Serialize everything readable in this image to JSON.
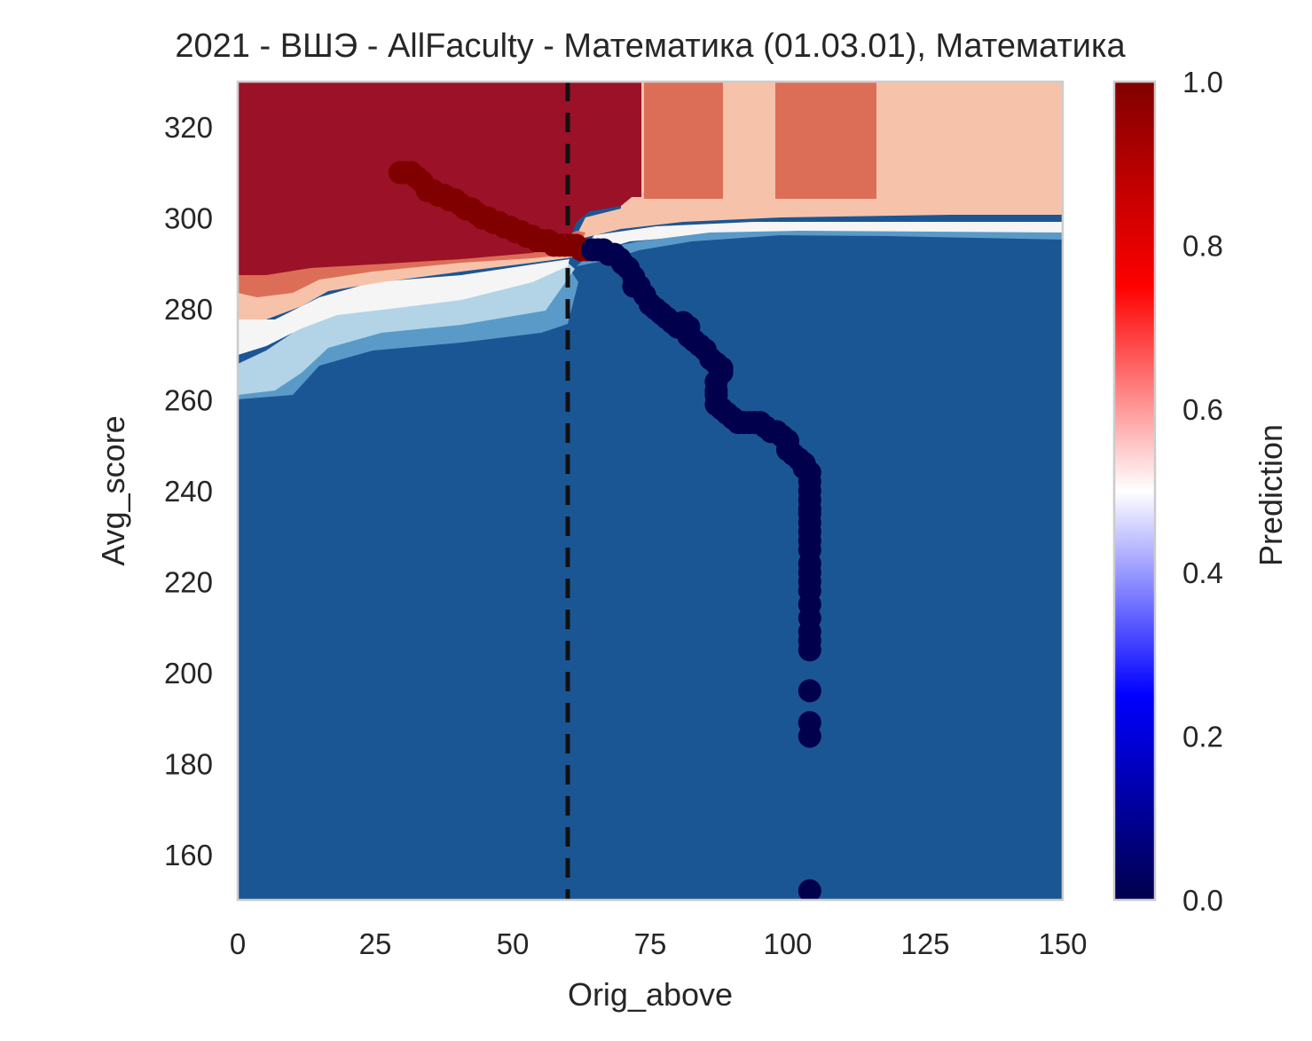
{
  "chart_data": {
    "type": "heatmap",
    "title": "2021 - ВШЭ - AllFaculty - Математика (01.03.01), Математика",
    "xlabel": "Orig_above",
    "ylabel": "Avg_score",
    "xlim": [
      0,
      150
    ],
    "ylim": [
      150,
      330
    ],
    "x_ticks": [
      0,
      25,
      50,
      75,
      100,
      125,
      150
    ],
    "y_ticks": [
      160,
      180,
      200,
      220,
      240,
      260,
      280,
      300,
      320
    ],
    "grid": false,
    "colorbar": {
      "label": "Prediction",
      "range": [
        0,
        1
      ],
      "ticks": [
        "0.0",
        "0.2",
        "0.4",
        "0.6",
        "0.8",
        "1.0"
      ],
      "colormap": [
        "#00004c",
        "#0000ff",
        "#ffffff",
        "#ff0000",
        "#800000"
      ]
    },
    "contour_levels": [
      {
        "range": "0.9-1.0",
        "color": "#9b1127"
      },
      {
        "range": "0.7-0.8",
        "color": "#dc6e57"
      },
      {
        "range": "0.6-0.7",
        "color": "#f6c3aa"
      },
      {
        "range": "0.4-0.6",
        "color": "#f5f5f5"
      },
      {
        "range": "0.3-0.4",
        "color": "#b2d4e6"
      },
      {
        "range": "0.2-0.3",
        "color": "#5a9ac8"
      },
      {
        "range": "0.0-0.1",
        "color": "#1b5694"
      }
    ],
    "vertical_line": {
      "x": 60,
      "style": "dashed",
      "color": "#111111"
    },
    "high_points": [
      [
        29.5,
        310
      ],
      [
        30.5,
        310
      ],
      [
        31.5,
        310
      ],
      [
        32.5,
        309
      ],
      [
        33.5,
        308
      ],
      [
        34.5,
        306
      ],
      [
        35.5,
        306
      ],
      [
        36.5,
        305
      ],
      [
        37.5,
        305
      ],
      [
        38.5,
        304
      ],
      [
        39.5,
        304
      ],
      [
        40.5,
        303
      ],
      [
        41.5,
        302
      ],
      [
        42.5,
        302
      ],
      [
        43.5,
        301
      ],
      [
        44.5,
        300
      ],
      [
        45.5,
        300
      ],
      [
        46.5,
        299
      ],
      [
        47.5,
        299
      ],
      [
        48.5,
        298
      ],
      [
        49.5,
        298
      ],
      [
        50.5,
        297
      ],
      [
        51.5,
        297
      ],
      [
        52.5,
        296
      ],
      [
        53.5,
        296
      ],
      [
        54.5,
        295
      ],
      [
        55.5,
        295
      ],
      [
        56.5,
        295
      ],
      [
        57.5,
        294
      ],
      [
        58.5,
        294
      ],
      [
        59.5,
        294
      ],
      [
        60.5,
        294
      ],
      [
        61.5,
        294
      ],
      [
        62.5,
        293
      ],
      [
        63.5,
        293
      ]
    ],
    "low_points": [
      [
        64.5,
        293
      ],
      [
        65.5,
        293
      ],
      [
        66.5,
        293
      ],
      [
        67.5,
        292
      ],
      [
        68.5,
        292
      ],
      [
        69.5,
        291
      ],
      [
        70,
        290
      ],
      [
        71,
        289
      ],
      [
        72,
        287
      ],
      [
        72,
        285
      ],
      [
        73,
        285
      ],
      [
        74,
        283
      ],
      [
        75,
        281
      ],
      [
        76,
        280
      ],
      [
        77,
        279
      ],
      [
        78,
        278
      ],
      [
        79,
        277
      ],
      [
        80,
        276
      ],
      [
        81,
        277
      ],
      [
        82,
        276
      ],
      [
        82,
        274
      ],
      [
        83,
        273
      ],
      [
        84,
        272
      ],
      [
        85,
        271
      ],
      [
        86,
        269
      ],
      [
        87,
        268
      ],
      [
        88,
        267
      ],
      [
        88,
        266
      ],
      [
        87,
        264
      ],
      [
        87,
        262
      ],
      [
        87,
        261
      ],
      [
        87,
        259
      ],
      [
        88,
        258
      ],
      [
        89,
        257
      ],
      [
        90,
        256
      ],
      [
        91,
        255
      ],
      [
        92,
        255
      ],
      [
        93,
        255
      ],
      [
        94,
        255
      ],
      [
        95,
        255
      ],
      [
        96,
        254
      ],
      [
        97,
        253
      ],
      [
        98,
        253
      ],
      [
        99,
        252
      ],
      [
        100,
        251
      ],
      [
        100,
        249
      ],
      [
        101,
        248
      ],
      [
        102,
        247
      ],
      [
        103,
        246
      ],
      [
        103,
        245
      ],
      [
        104,
        244
      ],
      [
        104,
        242
      ],
      [
        104,
        240
      ],
      [
        104,
        238
      ],
      [
        104,
        236
      ],
      [
        104,
        235
      ],
      [
        104,
        233
      ],
      [
        104,
        231
      ],
      [
        104,
        229
      ],
      [
        104,
        227
      ],
      [
        104,
        224
      ],
      [
        104,
        222
      ],
      [
        104,
        220
      ],
      [
        104,
        218
      ],
      [
        104,
        215
      ],
      [
        104,
        212
      ],
      [
        104,
        209
      ],
      [
        104,
        207
      ],
      [
        104,
        205
      ],
      [
        104,
        196
      ],
      [
        104,
        189
      ],
      [
        104,
        186
      ],
      [
        104,
        152
      ]
    ]
  }
}
